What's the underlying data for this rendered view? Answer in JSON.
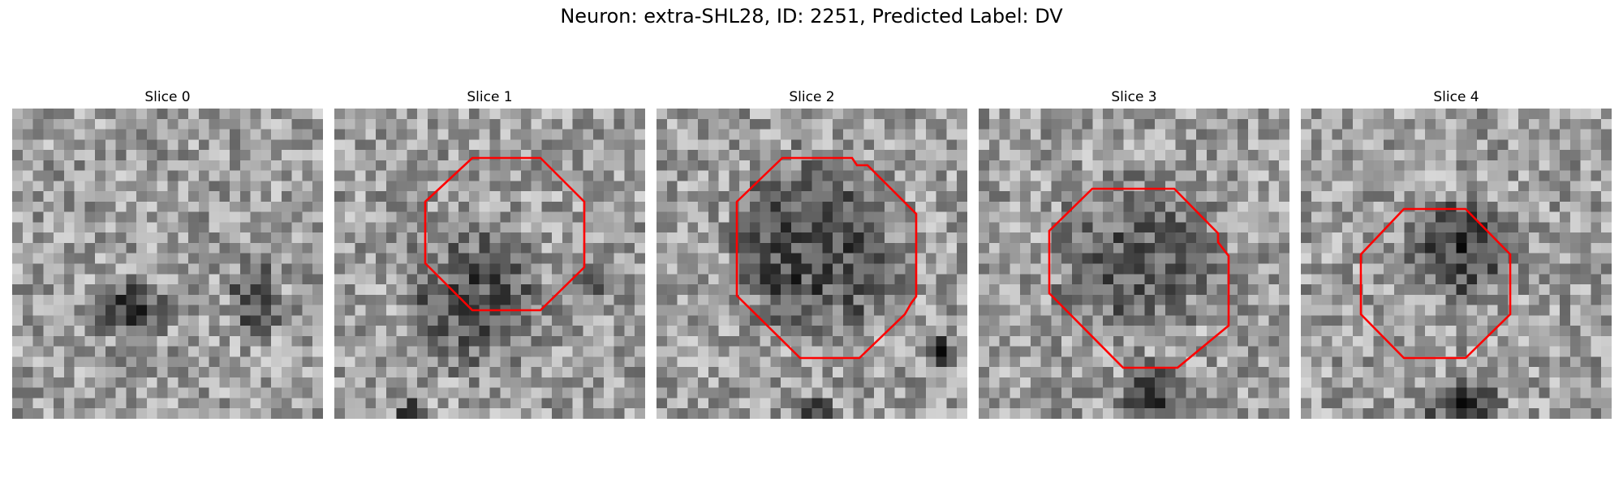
{
  "figure": {
    "title": "Neuron: extra-SHL28, ID: 2251, Predicted Label: DV"
  },
  "colors": {
    "contour": "#ff0000",
    "background": "#ffffff"
  },
  "panels": [
    {
      "title": "Slice 0",
      "has_contour": false
    },
    {
      "title": "Slice 1",
      "has_contour": true
    },
    {
      "title": "Slice 2",
      "has_contour": true
    },
    {
      "title": "Slice 3",
      "has_contour": true
    },
    {
      "title": "Slice 4",
      "has_contour": true
    }
  ]
}
